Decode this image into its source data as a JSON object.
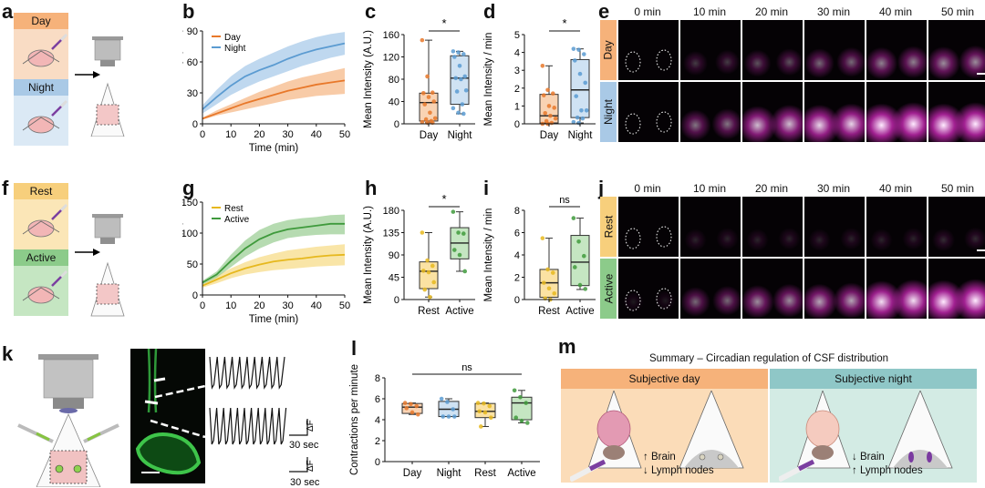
{
  "panels": {
    "a": {
      "label": "a",
      "top_condition": "Day",
      "bottom_condition": "Night",
      "colors": {
        "top_header": "#f6b27a",
        "top_body": "#f9dcc4",
        "bottom_header": "#a9c9e6",
        "bottom_body": "#dbe9f5"
      }
    },
    "f": {
      "label": "f",
      "top_condition": "Rest",
      "bottom_condition": "Active",
      "colors": {
        "top_header": "#f7cf7c",
        "top_body": "#fbe6b7",
        "bottom_header": "#8ccb8a",
        "bottom_body": "#c5e6c2"
      }
    },
    "e": {
      "label": "e",
      "times": [
        "0 min",
        "10 min",
        "20 min",
        "30 min",
        "40 min",
        "50 min"
      ],
      "rows": [
        "Day",
        "Night"
      ],
      "row_colors": [
        "#f6b27a",
        "#a9c9e6"
      ],
      "intensity": {
        "Day": [
          0,
          0.25,
          0.35,
          0.45,
          0.55,
          0.6
        ],
        "Night": [
          0,
          0.5,
          0.8,
          0.9,
          1.0,
          1.0
        ]
      }
    },
    "j": {
      "label": "j",
      "times": [
        "0 min",
        "10 min",
        "20 min",
        "30 min",
        "40 min",
        "50 min"
      ],
      "rows": [
        "Rest",
        "Active"
      ],
      "row_colors": [
        "#f7cf7c",
        "#8ccb8a"
      ],
      "intensity": {
        "Rest": [
          0,
          0.15,
          0.15,
          0.15,
          0.15,
          0.18
        ],
        "Active": [
          0.1,
          0.45,
          0.6,
          0.7,
          0.95,
          1.0
        ]
      }
    },
    "k": {
      "label": "k",
      "scale_label_1": "30 sec",
      "scale_label_2": "30 sec",
      "delta_label": "ΔF"
    },
    "m": {
      "label": "m",
      "title": "Summary – Circadian regulation of CSF distribution",
      "day": {
        "header": "Subjective day",
        "effects": [
          {
            "arrow": "↑",
            "text": "Brain"
          },
          {
            "arrow": "↓",
            "text": "Lymph nodes"
          }
        ],
        "header_color": "#f6b27a",
        "body_color": "#fbdcb8"
      },
      "night": {
        "header": "Subjective night",
        "effects": [
          {
            "arrow": "↓",
            "text": "Brain"
          },
          {
            "arrow": "↑",
            "text": "Lymph nodes"
          }
        ],
        "header_color": "#8fc7c7",
        "body_color": "#d3ebe4"
      }
    }
  },
  "chart_data": [
    {
      "id": "b",
      "label": "b",
      "type": "line",
      "xlabel": "Time (min)",
      "ylabel": "Mean Intensity (A.U.)",
      "xlim": [
        0,
        50
      ],
      "ylim": [
        0,
        90
      ],
      "xticks": [
        0,
        10,
        20,
        30,
        40,
        50
      ],
      "yticks": [
        0,
        30,
        60,
        90
      ],
      "legend": "top-left",
      "x": [
        0,
        5,
        10,
        15,
        20,
        25,
        30,
        35,
        40,
        45,
        50
      ],
      "series": [
        {
          "name": "Day",
          "color": "#e8782a",
          "fill": "#f5b98a",
          "mean": [
            5,
            10,
            15,
            20,
            24,
            28,
            32,
            35,
            38,
            40,
            42
          ],
          "lower": [
            4,
            8,
            11,
            14,
            17,
            20,
            23,
            25,
            27,
            28,
            29
          ],
          "upper": [
            6,
            13,
            19,
            25,
            31,
            36,
            41,
            45,
            48,
            51,
            54
          ]
        },
        {
          "name": "Night",
          "color": "#5b9bd1",
          "fill": "#a9cbe9",
          "mean": [
            14,
            26,
            37,
            46,
            52,
            57,
            63,
            68,
            72,
            75,
            78
          ],
          "lower": [
            10,
            19,
            28,
            35,
            41,
            46,
            51,
            56,
            60,
            64,
            67
          ],
          "upper": [
            18,
            33,
            46,
            56,
            63,
            69,
            75,
            80,
            84,
            87,
            89
          ]
        }
      ]
    },
    {
      "id": "c",
      "label": "c",
      "type": "box",
      "ylabel": "Mean Intensity (A.U.)",
      "ylim": [
        0,
        160
      ],
      "yticks": [
        0,
        40,
        80,
        120,
        160
      ],
      "significance": "*",
      "groups": [
        {
          "name": "Day",
          "color": "#e8782a",
          "fill": "#f9d3b3",
          "whisker_low": 2,
          "q1": 5,
          "median": 38,
          "q3": 55,
          "whisker_high": 150,
          "points": [
            150,
            85,
            56,
            55,
            48,
            40,
            35,
            20,
            10,
            8,
            5,
            3,
            2,
            2
          ]
        },
        {
          "name": "Night",
          "color": "#5b9bd1",
          "fill": "#cfe2f3",
          "whisker_low": 18,
          "q1": 35,
          "median": 82,
          "q3": 122,
          "whisker_high": 130,
          "points": [
            130,
            128,
            125,
            120,
            104,
            85,
            82,
            80,
            60,
            58,
            35,
            28,
            20,
            18
          ]
        }
      ]
    },
    {
      "id": "d",
      "label": "d",
      "type": "box",
      "ylabel": "Mean Intensity / min",
      "ylim": [
        0,
        5
      ],
      "yticks": [
        0,
        1,
        2,
        3,
        4,
        5
      ],
      "significance": "*",
      "groups": [
        {
          "name": "Day",
          "color": "#e8782a",
          "fill": "#f9d3b3",
          "whisker_low": 0,
          "q1": 0.05,
          "median": 0.45,
          "q3": 1.65,
          "whisker_high": 3.25,
          "points": [
            3.25,
            1.9,
            1.7,
            1.6,
            1.0,
            0.9,
            0.6,
            0.45,
            0.3,
            0.15,
            0.05,
            0,
            0
          ]
        },
        {
          "name": "Night",
          "color": "#5b9bd1",
          "fill": "#cfe2f3",
          "whisker_low": 0.05,
          "q1": 0.35,
          "median": 1.9,
          "q3": 3.6,
          "whisker_high": 4.2,
          "points": [
            4.2,
            4.15,
            3.9,
            3.55,
            2.8,
            2.3,
            1.55,
            0.75,
            0.75,
            0.35,
            0.3,
            0.1,
            0.05
          ]
        }
      ]
    },
    {
      "id": "g",
      "label": "g",
      "type": "line",
      "xlabel": "Time (min)",
      "ylabel": "Mean Intensity (A.U.)",
      "xlim": [
        0,
        50
      ],
      "ylim": [
        0,
        150
      ],
      "xticks": [
        0,
        10,
        20,
        30,
        40,
        50
      ],
      "yticks": [
        0,
        50,
        100,
        150
      ],
      "legend": "top-left",
      "x": [
        0,
        5,
        10,
        15,
        20,
        25,
        30,
        35,
        40,
        45,
        50
      ],
      "series": [
        {
          "name": "Rest",
          "color": "#e6b81e",
          "fill": "#f7dc8a",
          "mean": [
            15,
            25,
            35,
            43,
            49,
            54,
            57,
            59,
            62,
            64,
            65
          ],
          "lower": [
            12,
            19,
            27,
            33,
            37,
            40,
            42,
            44,
            46,
            47,
            48
          ],
          "upper": [
            18,
            31,
            43,
            53,
            61,
            67,
            72,
            75,
            78,
            80,
            82
          ]
        },
        {
          "name": "Active",
          "color": "#3f9a3c",
          "fill": "#9ecf97",
          "mean": [
            20,
            33,
            55,
            75,
            90,
            100,
            106,
            109,
            112,
            115,
            115
          ],
          "lower": [
            17,
            28,
            45,
            62,
            75,
            85,
            92,
            95,
            97,
            98,
            98
          ],
          "upper": [
            23,
            38,
            65,
            88,
            105,
            115,
            121,
            124,
            126,
            129,
            130
          ]
        }
      ]
    },
    {
      "id": "h",
      "label": "h",
      "type": "box",
      "ylabel": "Mean Intensity (A.U.)",
      "ylim": [
        0,
        180
      ],
      "yticks": [
        0,
        45,
        90,
        135,
        180
      ],
      "significance": "*",
      "groups": [
        {
          "name": "Rest",
          "color": "#e6b81e",
          "fill": "#fbe2a3",
          "whisker_low": 5,
          "q1": 22,
          "median": 57,
          "q3": 76,
          "whisker_high": 135,
          "points": [
            135,
            79,
            68,
            58,
            55,
            35,
            20,
            5
          ]
        },
        {
          "name": "Active",
          "color": "#3f9a3c",
          "fill": "#c5e6c2",
          "whisker_low": 57,
          "q1": 82,
          "median": 114,
          "q3": 145,
          "whisker_high": 177,
          "points": [
            177,
            135,
            133,
            100,
            90,
            57
          ]
        }
      ]
    },
    {
      "id": "i",
      "label": "i",
      "type": "box",
      "ylabel": "Mean Intensity / min",
      "ylim": [
        0,
        8
      ],
      "yticks": [
        0,
        2,
        4,
        6,
        8
      ],
      "significance": "ns",
      "groups": [
        {
          "name": "Rest",
          "color": "#e6b81e",
          "fill": "#fbe2a3",
          "whisker_low": 0,
          "q1": 0.2,
          "median": 1.5,
          "q3": 2.7,
          "whisker_high": 5.5,
          "points": [
            5.5,
            2.7,
            2.4,
            1.5,
            1.0,
            0.55,
            0.1,
            0
          ]
        },
        {
          "name": "Active",
          "color": "#3f9a3c",
          "fill": "#c5e6c2",
          "whisker_low": 0.9,
          "q1": 1.25,
          "median": 3.35,
          "q3": 5.75,
          "whisker_high": 7.3,
          "points": [
            7.3,
            5.2,
            3.9,
            2.9,
            1.3,
            0.95
          ]
        }
      ]
    },
    {
      "id": "l",
      "label": "l",
      "type": "box",
      "ylabel": "Contractions per minute",
      "ylim": [
        0,
        8
      ],
      "yticks": [
        0,
        2,
        4,
        6,
        8
      ],
      "significance": "ns",
      "groups": [
        {
          "name": "Day",
          "color": "#e8782a",
          "fill": "#f9d3b3",
          "whisker_low": 4.5,
          "q1": 4.6,
          "median": 5.2,
          "q3": 5.55,
          "whisker_high": 5.6,
          "points": [
            5.6,
            5.5,
            5.3,
            5.1,
            4.7,
            4.5
          ]
        },
        {
          "name": "Night",
          "color": "#5b9bd1",
          "fill": "#cfe2f3",
          "whisker_low": 4.3,
          "q1": 4.3,
          "median": 5.0,
          "q3": 5.75,
          "whisker_high": 6.0,
          "points": [
            6.0,
            5.7,
            5.0,
            4.3,
            4.3,
            4.3
          ]
        },
        {
          "name": "Rest",
          "color": "#e6b81e",
          "fill": "#fbe2a3",
          "whisker_low": 3.35,
          "q1": 4.2,
          "median": 4.8,
          "q3": 5.55,
          "whisker_high": 5.6,
          "points": [
            5.6,
            5.55,
            5.3,
            4.8,
            4.7,
            4.2,
            3.35
          ]
        },
        {
          "name": "Active",
          "color": "#3f9a3c",
          "fill": "#c5e6c2",
          "whisker_low": 3.7,
          "q1": 4.0,
          "median": 5.6,
          "q3": 6.15,
          "whisker_high": 6.8,
          "points": [
            6.8,
            6.15,
            5.6,
            4.2,
            3.9,
            3.7
          ]
        }
      ]
    }
  ]
}
